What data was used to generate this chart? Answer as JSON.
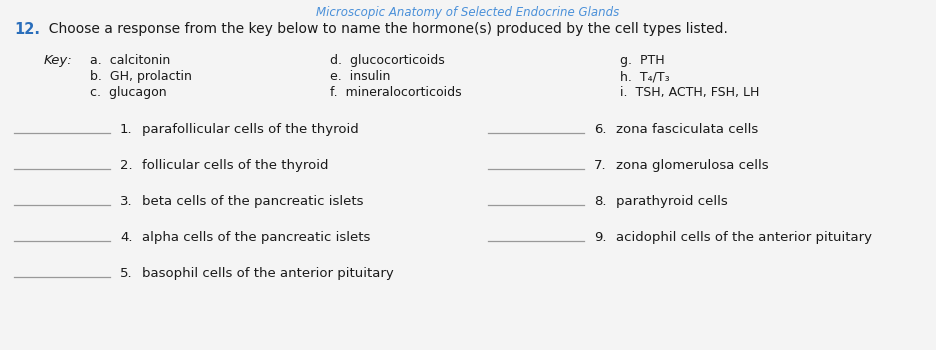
{
  "title_number": "12.",
  "title_text": "  Choose a response from the key below to name the hormone(s) produced by the cell types listed.",
  "number_color": "#2a6ebb",
  "header_text": "Microscopic Anatomy of Selected Endocrine Glands",
  "header_color": "#4a90d9",
  "key_label": "Key:",
  "key_col1": [
    "a.  calcitonin",
    "b.  GH, prolactin",
    "c.  glucagon"
  ],
  "key_col2": [
    "d.  glucocorticoids",
    "e.  insulin",
    "f.  mineralocorticoids"
  ],
  "key_col3": [
    "g.  PTH",
    "h.  T₄/T₃",
    "i.  TSH, ACTH, FSH, LH"
  ],
  "left_items": [
    [
      "1.",
      "parafollicular cells of the thyroid"
    ],
    [
      "2.",
      "follicular cells of the thyroid"
    ],
    [
      "3.",
      "beta cells of the pancreatic islets"
    ],
    [
      "4.",
      "alpha cells of the pancreatic islets"
    ],
    [
      "5.",
      "basophil cells of the anterior pituitary"
    ]
  ],
  "right_items": [
    [
      "6.",
      "zona fasciculata cells"
    ],
    [
      "7.",
      "zona glomerulosa cells"
    ],
    [
      "8.",
      "parathyroid cells"
    ],
    [
      "9.",
      "acidophil cells of the anterior pituitary"
    ]
  ],
  "bg_color": "#f4f4f4",
  "line_color": "#999999",
  "text_color": "#1a1a1a",
  "font_size_title": 10.0,
  "font_size_key": 9.0,
  "font_size_items": 9.0
}
